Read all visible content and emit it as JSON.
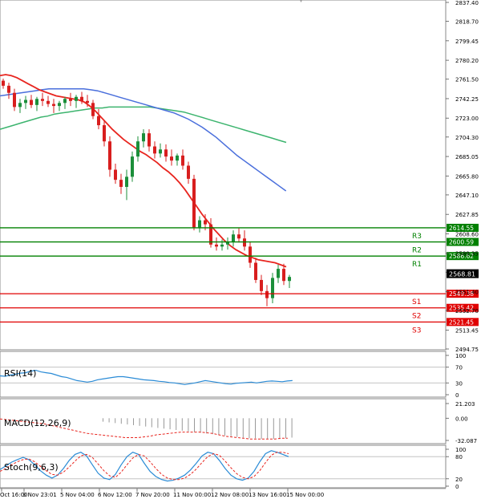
{
  "chart_data": [
    {
      "type": "candlestick",
      "title": "",
      "y_axis_ticks": [
        "2837.40",
        "2818.70",
        "2799.45",
        "2780.20",
        "2761.50",
        "2742.25",
        "2723.00",
        "2704.30",
        "2685.05",
        "2665.80",
        "2647.10",
        "2627.85",
        "2608.60",
        "2589.35",
        "2570.65",
        "2551.40",
        "2532.70",
        "2513.45",
        "2494.75"
      ],
      "ylim": [
        2494.75,
        2837.4
      ],
      "x_axis_ticks": [
        "Oct 16:00",
        "3 Nov 23:01",
        "5 Nov 04:00",
        "6 Nov 12:00",
        "7 Nov 20:00",
        "11 Nov 00:00",
        "12 Nov 08:00",
        "13 Nov 16:00",
        "15 Nov 00:00"
      ],
      "candles": [
        [
          2760,
          2762,
          2752,
          2755
        ],
        [
          2755,
          2758,
          2742,
          2748
        ],
        [
          2748,
          2752,
          2730,
          2734
        ],
        [
          2734,
          2742,
          2728,
          2738
        ],
        [
          2738,
          2745,
          2732,
          2741
        ],
        [
          2741,
          2746,
          2733,
          2736
        ],
        [
          2736,
          2744,
          2730,
          2742
        ],
        [
          2742,
          2748,
          2735,
          2740
        ],
        [
          2740,
          2745,
          2734,
          2737
        ],
        [
          2737,
          2742,
          2728,
          2735
        ],
        [
          2735,
          2740,
          2730,
          2738
        ],
        [
          2738,
          2744,
          2732,
          2742
        ],
        [
          2742,
          2748,
          2735,
          2740
        ],
        [
          2740,
          2746,
          2733,
          2744
        ],
        [
          2744,
          2749,
          2737,
          2740
        ],
        [
          2740,
          2746,
          2734,
          2738
        ],
        [
          2738,
          2741,
          2722,
          2725
        ],
        [
          2725,
          2732,
          2712,
          2716
        ],
        [
          2716,
          2721,
          2695,
          2700
        ],
        [
          2700,
          2705,
          2665,
          2672
        ],
        [
          2672,
          2678,
          2658,
          2662
        ],
        [
          2662,
          2668,
          2648,
          2655
        ],
        [
          2655,
          2672,
          2642,
          2665
        ],
        [
          2665,
          2690,
          2660,
          2685
        ],
        [
          2685,
          2705,
          2680,
          2700
        ],
        [
          2700,
          2712,
          2694,
          2708
        ],
        [
          2708,
          2712,
          2690,
          2695
        ],
        [
          2695,
          2700,
          2683,
          2688
        ],
        [
          2688,
          2698,
          2684,
          2692
        ],
        [
          2692,
          2697,
          2680,
          2685
        ],
        [
          2685,
          2692,
          2676,
          2681
        ],
        [
          2681,
          2688,
          2676,
          2686
        ],
        [
          2686,
          2692,
          2672,
          2676
        ],
        [
          2676,
          2680,
          2658,
          2663
        ],
        [
          2663,
          2667,
          2612,
          2615
        ],
        [
          2615,
          2626,
          2610,
          2622
        ],
        [
          2622,
          2628,
          2612,
          2618
        ],
        [
          2618,
          2624,
          2595,
          2598
        ],
        [
          2598,
          2605,
          2592,
          2596
        ],
        [
          2596,
          2603,
          2592,
          2598
        ],
        [
          2598,
          2605,
          2593,
          2601
        ],
        [
          2601,
          2612,
          2596,
          2608
        ],
        [
          2608,
          2614,
          2600,
          2604
        ],
        [
          2604,
          2612,
          2592,
          2596
        ],
        [
          2596,
          2601,
          2575,
          2580
        ],
        [
          2580,
          2585,
          2560,
          2563
        ],
        [
          2563,
          2568,
          2548,
          2552
        ],
        [
          2552,
          2558,
          2537,
          2545
        ],
        [
          2545,
          2570,
          2540,
          2565
        ],
        [
          2565,
          2578,
          2560,
          2574
        ],
        [
          2574,
          2579,
          2558,
          2562
        ],
        [
          2562,
          2568,
          2555,
          2566
        ]
      ],
      "ma_red": [
        2765,
        2766,
        2765,
        2763,
        2760,
        2757,
        2754,
        2751,
        2749,
        2747,
        2745,
        2744,
        2743,
        2742,
        2741,
        2739,
        2735,
        2730,
        2724,
        2718,
        2712,
        2707,
        2702,
        2698,
        2694,
        2690,
        2687,
        2683,
        2679,
        2674,
        2670,
        2665,
        2659,
        2652,
        2644,
        2636,
        2628,
        2621,
        2614,
        2608,
        2602,
        2597,
        2593,
        2590,
        2587,
        2585,
        2583,
        2582,
        2581,
        2580,
        2578,
        2576
      ],
      "ma_blue": [
        2745,
        2746,
        2747,
        2748,
        2749,
        2750,
        2751,
        2752,
        2752,
        2752,
        2752,
        2752,
        2752,
        2751,
        2750,
        2748,
        2746,
        2744,
        2742,
        2740,
        2738,
        2736,
        2734,
        2732,
        2730,
        2728,
        2725,
        2722,
        2718,
        2714,
        2709,
        2704,
        2698,
        2692,
        2686,
        2681,
        2676,
        2671,
        2666,
        2661,
        2656,
        2651
      ],
      "ma_green": [
        2712,
        2714,
        2716,
        2718,
        2720,
        2722,
        2724,
        2725,
        2727,
        2728,
        2729,
        2730,
        2731,
        2732,
        2733,
        2733,
        2734,
        2734,
        2734,
        2734,
        2734,
        2734,
        2734,
        2733,
        2732,
        2731,
        2730,
        2729,
        2727,
        2725,
        2723,
        2721,
        2719,
        2717,
        2715,
        2713,
        2711,
        2709,
        2707,
        2705,
        2703,
        2701,
        2699
      ],
      "levels": [
        {
          "name": "R3",
          "value": "2614.55",
          "color": "#008000"
        },
        {
          "name": "R2",
          "value": "2600.59",
          "color": "#008000"
        },
        {
          "name": "R1",
          "value": "2586.62",
          "color": "#008000"
        },
        {
          "name": "S1",
          "value": "2549.38",
          "color": "#e00000"
        },
        {
          "name": "S2",
          "value": "2535.42",
          "color": "#e00000"
        },
        {
          "name": "S3",
          "value": "2521.45",
          "color": "#e00000"
        }
      ],
      "current_price": "2568.81"
    },
    {
      "type": "line",
      "title": "RSI(14)",
      "y_axis_ticks": [
        "100",
        "70",
        "30",
        "0"
      ],
      "ylim": [
        0,
        100
      ],
      "values": [
        48,
        47,
        50,
        52,
        55,
        56,
        60,
        62,
        58,
        56,
        54,
        50,
        46,
        44,
        40,
        36,
        34,
        32,
        34,
        38,
        40,
        42,
        44,
        46,
        46,
        44,
        42,
        40,
        38,
        37,
        36,
        34,
        33,
        31,
        30,
        28,
        26,
        28,
        30,
        33,
        36,
        34,
        32,
        30,
        28,
        27,
        29,
        30,
        31,
        32,
        30,
        32,
        34,
        35,
        34,
        33,
        35,
        36
      ]
    },
    {
      "type": "bar",
      "title": "MACD(12,26,9)",
      "y_axis_ticks": [
        "21.203",
        "0.00",
        "-32.087"
      ],
      "ylim": [
        -32.087,
        21.203
      ],
      "histogram": [
        -5,
        -6,
        -7,
        -8,
        -9,
        -10,
        -11,
        -12,
        -13,
        -14,
        -15,
        -16,
        -17,
        -18,
        -19,
        -20,
        -21,
        -22,
        -23,
        -24,
        -25,
        -26,
        -27,
        -28,
        -29,
        -29,
        -30,
        -30,
        -30,
        -30,
        -29,
        -28
      ],
      "signal": [
        -1,
        -2,
        -3,
        -4,
        -5,
        -6,
        -7,
        -8,
        -10,
        -12,
        -14,
        -16,
        -18,
        -20,
        -22,
        -23,
        -24,
        -25,
        -26,
        -27,
        -28,
        -28,
        -28,
        -27,
        -26,
        -24,
        -23,
        -22,
        -21,
        -20,
        -20,
        -20,
        -20,
        -21,
        -22,
        -24,
        -26,
        -27,
        -28,
        -29,
        -30,
        -30,
        -30,
        -30,
        -30,
        -29,
        -29
      ]
    },
    {
      "type": "line",
      "title": "Stoch(9,6,3)",
      "y_axis_ticks": [
        "100",
        "80",
        "20",
        "0"
      ],
      "ylim": [
        0,
        100
      ],
      "k_values": [
        45,
        55,
        65,
        72,
        78,
        72,
        58,
        42,
        30,
        22,
        30,
        48,
        70,
        86,
        92,
        82,
        58,
        35,
        22,
        18,
        32,
        58,
        80,
        92,
        86,
        62,
        40,
        26,
        18,
        14,
        16,
        22,
        30,
        44,
        62,
        82,
        92,
        88,
        70,
        48,
        30,
        20,
        16,
        22,
        40,
        66,
        88,
        96,
        92,
        86,
        80
      ],
      "d_values": [
        40,
        48,
        58,
        66,
        72,
        74,
        66,
        54,
        42,
        32,
        30,
        38,
        52,
        68,
        82,
        86,
        78,
        60,
        42,
        28,
        24,
        38,
        58,
        76,
        86,
        82,
        66,
        48,
        32,
        22,
        18,
        18,
        22,
        32,
        46,
        64,
        80,
        88,
        84,
        68,
        50,
        34,
        24,
        20,
        26,
        42,
        64,
        84,
        92,
        92,
        88
      ]
    }
  ]
}
